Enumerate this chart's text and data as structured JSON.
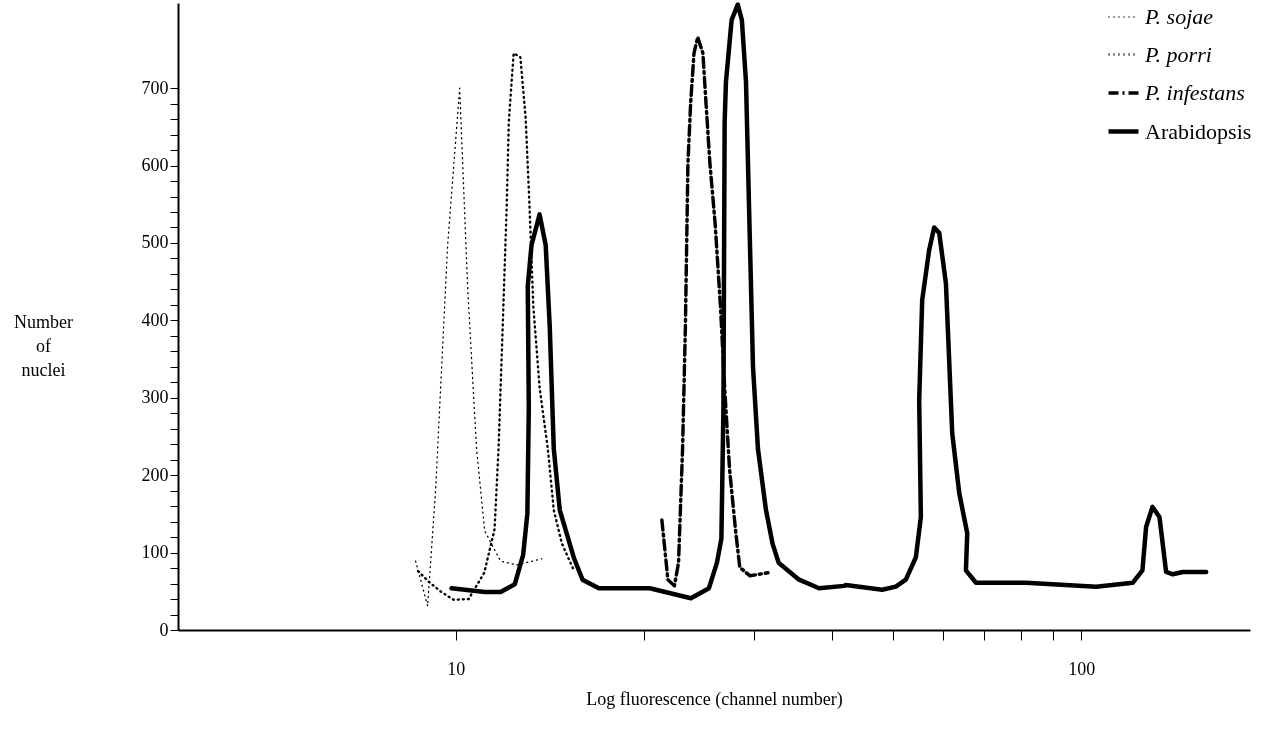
{
  "chart_data": {
    "type": "line",
    "xlabel": "Log fluorescence (channel number)",
    "ylabel": "Number of nuclei",
    "log": "x",
    "legend": "top right",
    "xlim": [
      3.6,
      186
    ],
    "xticks": [
      10,
      {
        "value": 20,
        "label": null
      },
      {
        "value": 30,
        "label": null
      },
      {
        "value": 40,
        "label": null
      },
      {
        "value": 50,
        "label": null
      },
      {
        "value": 60,
        "label": null
      },
      {
        "value": 70,
        "label": null
      },
      {
        "value": 80,
        "label": null
      },
      {
        "value": 90,
        "label": null
      },
      100
    ],
    "ylim": [
      0,
      810
    ],
    "yticks": [
      0,
      {
        "value": 20,
        "label": null
      },
      {
        "value": 40,
        "label": null
      },
      {
        "value": 60,
        "label": null
      },
      {
        "value": 80,
        "label": null
      },
      100,
      {
        "value": 120,
        "label": null
      },
      {
        "value": 140,
        "label": null
      },
      {
        "value": 160,
        "label": null
      },
      {
        "value": 180,
        "label": null
      },
      200,
      {
        "value": 220,
        "label": null
      },
      {
        "value": 240,
        "label": null
      },
      {
        "value": 260,
        "label": null
      },
      {
        "value": 280,
        "label": null
      },
      300,
      {
        "value": 320,
        "label": null
      },
      {
        "value": 340,
        "label": null
      },
      {
        "value": 360,
        "label": null
      },
      {
        "value": 380,
        "label": null
      },
      400,
      {
        "value": 420,
        "label": null
      },
      {
        "value": 440,
        "label": null
      },
      {
        "value": 460,
        "label": null
      },
      {
        "value": 480,
        "label": null
      },
      500,
      {
        "value": 520,
        "label": null
      },
      {
        "value": 540,
        "label": null
      },
      {
        "value": 560,
        "label": null
      },
      {
        "value": 580,
        "label": null
      },
      600,
      {
        "value": 620,
        "label": null
      },
      {
        "value": 640,
        "label": null
      },
      {
        "value": 660,
        "label": null
      },
      {
        "value": 680,
        "label": null
      },
      700
    ],
    "series": [
      {
        "name": "P. sojae",
        "color": "#000000",
        "line_style": "dotted",
        "x": [
          8.63,
          9.02,
          9.29,
          9.71,
          10.15,
          10.45,
          10.8,
          11.13,
          11.8,
          12.52,
          13.73
        ],
        "values": [
          89,
          31,
          181,
          497,
          700,
          444,
          234,
          128,
          89,
          84,
          92
        ]
      },
      {
        "name": "P. porri",
        "color": "#000000",
        "line_style": "dotted",
        "x": [
          8.71,
          9.07,
          9.49,
          9.93,
          10.49,
          11.11,
          11.54,
          11.71,
          11.89,
          12.07,
          12.16,
          12.38,
          12.69,
          12.94,
          13.12,
          13.31,
          13.62,
          14.04,
          14.35,
          14.78,
          15.47
        ],
        "values": [
          76,
          62,
          49,
          39,
          40,
          74,
          130,
          234,
          391,
          550,
          656,
          745,
          740,
          661,
          550,
          418,
          313,
          234,
          155,
          112,
          76
        ]
      },
      {
        "name": "P. infestans",
        "color": "#000000",
        "line_style": "dashed",
        "x": [
          21.36,
          21.84,
          22.37,
          22.71,
          23.05,
          23.29,
          23.51,
          23.75,
          24.04,
          24.37,
          24.84,
          25.12,
          25.49,
          25.99,
          26.5,
          26.91,
          27.4,
          28.02,
          28.45,
          29.54,
          31.56
        ],
        "values": [
          142,
          65,
          57,
          87,
          234,
          391,
          603,
          682,
          745,
          766,
          745,
          682,
          603,
          524,
          418,
          313,
          208,
          128,
          81,
          70,
          74
        ]
      },
      {
        "name": "Arabidopsis",
        "color": "#000000",
        "line_style": "solid",
        "x": [
          9.85,
          11.13,
          11.8,
          12.43,
          12.82,
          13.02,
          13.09,
          13.04,
          13.22,
          13.62,
          13.93,
          14.14,
          14.35,
          14.67,
          15.47,
          15.95,
          16.94,
          20.43,
          23.77,
          25.4,
          26.16,
          26.59,
          26.79,
          26.91,
          27.04,
          27.61,
          28.24,
          28.67,
          29.11,
          29.54,
          29.87,
          30.42,
          31.33,
          32.09,
          32.82,
          35.39,
          38.08,
          41.77,
          42.02,
          48.05,
          50.52,
          52.42,
          54.39,
          55.4,
          55.06,
          55.67,
          57.12,
          58.18,
          59.27,
          60.75,
          62.18,
          63.8,
          65.71,
          65.39,
          67.85,
          81.56,
          105.6,
          120.8,
          125.2,
          126.9,
          129.9,
          133.3,
          136.6,
          140,
          145.2,
          158.3
        ],
        "values": [
          54,
          49,
          49,
          59,
          97,
          150,
          287,
          444,
          497,
          537,
          497,
          391,
          234,
          155,
          92,
          65,
          54,
          54,
          41,
          54,
          87,
          118,
          287,
          656,
          708,
          788,
          808,
          788,
          708,
          497,
          340,
          234,
          155,
          112,
          87,
          65,
          54,
          57,
          58,
          52,
          56,
          65,
          94,
          146,
          297,
          426,
          491,
          520,
          513,
          448,
          254,
          177,
          125,
          77,
          61,
          61,
          56,
          61,
          77,
          133,
          159,
          146,
          75,
          72,
          75,
          75
        ]
      }
    ]
  }
}
